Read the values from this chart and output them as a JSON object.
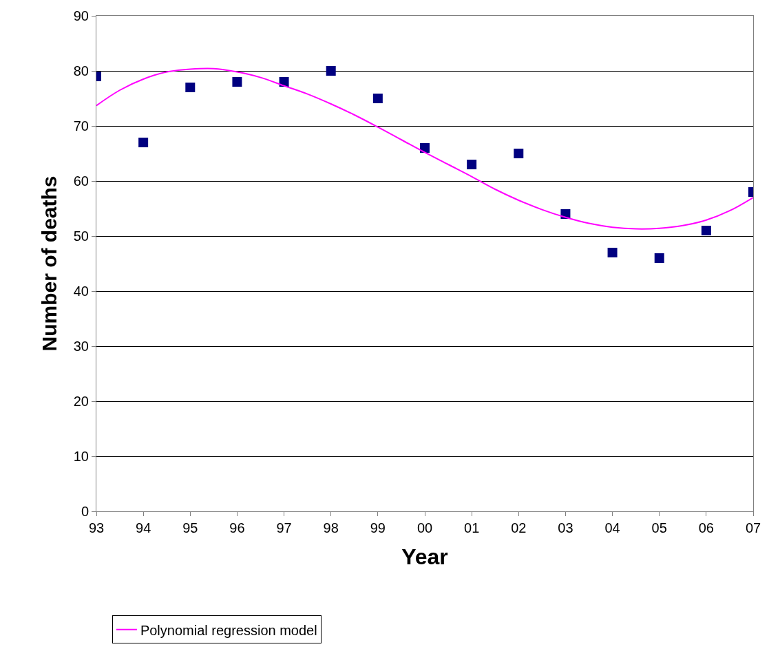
{
  "chart_data": {
    "type": "scatter",
    "xlabel": "Year",
    "ylabel": "Number of deaths",
    "x": [
      1993,
      1994,
      1995,
      1996,
      1997,
      1998,
      1999,
      2000,
      2001,
      2002,
      2003,
      2004,
      2005,
      2006,
      2007
    ],
    "series": [
      {
        "color": "#000080",
        "marker": "square",
        "values": [
          79,
          67,
          77,
          78,
          78,
          80,
          75,
          66,
          63,
          65,
          54,
          47,
          46,
          51,
          58
        ]
      },
      {
        "name": "Polynomial regression model",
        "type": "line",
        "color": "#ff00ff",
        "marker": "none",
        "x": [
          1993,
          1993.5,
          1994,
          1994.5,
          1995,
          1995.5,
          1996,
          1996.5,
          1997,
          1997.5,
          1998,
          1998.5,
          1999,
          1999.5,
          2000,
          2000.5,
          2001,
          2001.5,
          2002,
          2002.5,
          2003,
          2003.5,
          2004,
          2004.5,
          2005,
          2005.5,
          2006,
          2006.5,
          2007
        ],
        "values": [
          73.7,
          76.5,
          78.5,
          79.8,
          80.3,
          80.4,
          79.8,
          78.8,
          77.3,
          75.8,
          74,
          72,
          69.8,
          67.5,
          65.2,
          63,
          60.8,
          58.5,
          56.5,
          54.8,
          53.4,
          52.3,
          51.6,
          51.3,
          51.4,
          51.9,
          52.9,
          54.6,
          57
        ]
      }
    ],
    "xlim": [
      1993,
      2007
    ],
    "xticks": [
      {
        "value": 1993,
        "label": "93"
      },
      {
        "value": 1994,
        "label": "94"
      },
      {
        "value": 1995,
        "label": "95"
      },
      {
        "value": 1996,
        "label": "96"
      },
      {
        "value": 1997,
        "label": "97"
      },
      {
        "value": 1998,
        "label": "98"
      },
      {
        "value": 1999,
        "label": "99"
      },
      {
        "value": 2000,
        "label": "00"
      },
      {
        "value": 2001,
        "label": "01"
      },
      {
        "value": 2002,
        "label": "02"
      },
      {
        "value": 2003,
        "label": "03"
      },
      {
        "value": 2004,
        "label": "04"
      },
      {
        "value": 2005,
        "label": "05"
      },
      {
        "value": 2006,
        "label": "06"
      },
      {
        "value": 2007,
        "label": "07"
      }
    ],
    "ylim": [
      0,
      90
    ],
    "yticks": [
      0,
      10,
      20,
      30,
      40,
      50,
      60,
      70,
      80,
      90
    ],
    "grid": "y",
    "legend": "bottom left"
  }
}
